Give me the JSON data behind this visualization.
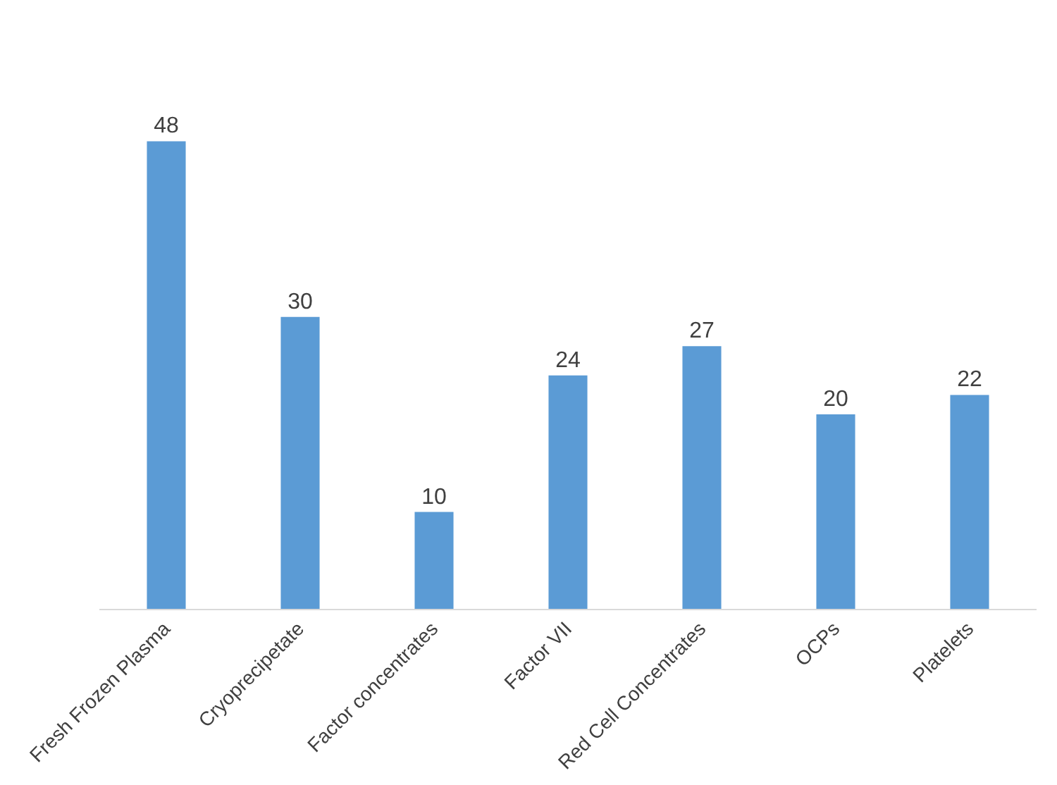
{
  "chart_data": {
    "type": "bar",
    "categories": [
      "Fresh Frozen Plasma",
      "Cryoprecipetate",
      "Factor concentrates",
      "Factor VII",
      "Red Cell Concentrates",
      "OCPs",
      "Platelets"
    ],
    "values": [
      48,
      30,
      10,
      24,
      27,
      20,
      22
    ],
    "color": "#5b9bd5",
    "data_labels": true
  }
}
